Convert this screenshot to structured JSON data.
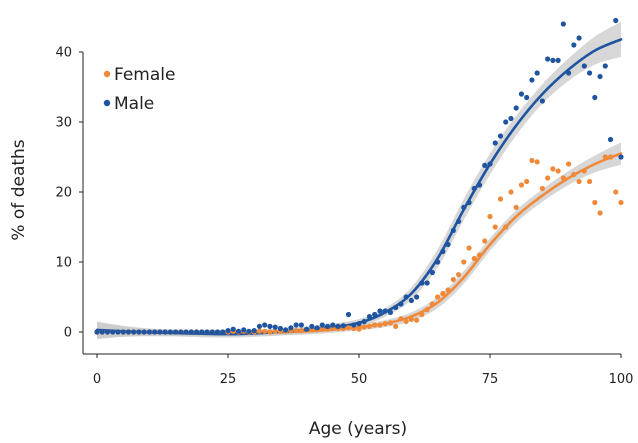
{
  "chart_data": {
    "type": "scatter",
    "title": "",
    "xlabel": "Age (years)",
    "ylabel": "% of deaths",
    "xlim": [
      0,
      100
    ],
    "ylim": [
      0,
      45
    ],
    "xticks": [
      0,
      25,
      50,
      75,
      100
    ],
    "yticks": [
      0,
      10,
      20,
      30,
      40
    ],
    "grid": false,
    "legend_position": "top-left",
    "band_color": "#c9c9c9",
    "series": [
      {
        "name": "Female",
        "color": "#f08a3a",
        "points": [
          [
            0,
            0
          ],
          [
            1,
            0
          ],
          [
            2,
            0
          ],
          [
            3,
            0
          ],
          [
            4,
            0
          ],
          [
            5,
            0
          ],
          [
            6,
            0
          ],
          [
            7,
            0
          ],
          [
            8,
            0
          ],
          [
            9,
            0
          ],
          [
            10,
            0
          ],
          [
            11,
            0
          ],
          [
            12,
            0
          ],
          [
            13,
            0
          ],
          [
            14,
            0
          ],
          [
            15,
            0
          ],
          [
            16,
            0
          ],
          [
            17,
            0
          ],
          [
            18,
            0
          ],
          [
            19,
            0
          ],
          [
            20,
            0
          ],
          [
            21,
            0
          ],
          [
            22,
            0
          ],
          [
            23,
            0
          ],
          [
            24,
            0
          ],
          [
            25,
            0
          ],
          [
            26,
            0.1
          ],
          [
            27,
            0
          ],
          [
            28,
            0.1
          ],
          [
            29,
            0
          ],
          [
            30,
            0
          ],
          [
            31,
            0.1
          ],
          [
            32,
            0.1
          ],
          [
            33,
            0
          ],
          [
            34,
            0.1
          ],
          [
            35,
            0.1
          ],
          [
            36,
            0.1
          ],
          [
            37,
            0.2
          ],
          [
            38,
            0.2
          ],
          [
            39,
            0.2
          ],
          [
            40,
            0.3
          ],
          [
            41,
            0.3
          ],
          [
            42,
            0.3
          ],
          [
            43,
            0.4
          ],
          [
            44,
            0.4
          ],
          [
            45,
            0.5
          ],
          [
            46,
            0.5
          ],
          [
            47,
            0.5
          ],
          [
            48,
            0.6
          ],
          [
            49,
            0.5
          ],
          [
            50,
            0.4
          ],
          [
            51,
            0.7
          ],
          [
            52,
            0.8
          ],
          [
            53,
            1.0
          ],
          [
            54,
            1.0
          ],
          [
            55,
            1.2
          ],
          [
            56,
            1.3
          ],
          [
            57,
            0.8
          ],
          [
            58,
            1.9
          ],
          [
            59,
            1.5
          ],
          [
            60,
            1.8
          ],
          [
            61,
            1.7
          ],
          [
            62,
            2.5
          ],
          [
            63,
            3.2
          ],
          [
            64,
            4.0
          ],
          [
            65,
            5.0
          ],
          [
            66,
            5.5
          ],
          [
            67,
            6.0
          ],
          [
            68,
            7.5
          ],
          [
            69,
            8.2
          ],
          [
            70,
            10.0
          ],
          [
            71,
            12.0
          ],
          [
            72,
            10.5
          ],
          [
            73,
            11.0
          ],
          [
            74,
            13.0
          ],
          [
            75,
            16.5
          ],
          [
            76,
            15.0
          ],
          [
            77,
            19.0
          ],
          [
            78,
            15.0
          ],
          [
            79,
            20.0
          ],
          [
            80,
            17.8
          ],
          [
            81,
            21.0
          ],
          [
            82,
            21.5
          ],
          [
            83,
            24.5
          ],
          [
            84,
            24.3
          ],
          [
            85,
            20.5
          ],
          [
            86,
            22.0
          ],
          [
            87,
            23.3
          ],
          [
            88,
            23.0
          ],
          [
            89,
            22.0
          ],
          [
            90,
            24.0
          ],
          [
            91,
            22.5
          ],
          [
            92,
            21.5
          ],
          [
            93,
            23.0
          ],
          [
            94,
            21.5
          ],
          [
            95,
            18.5
          ],
          [
            96,
            17.0
          ],
          [
            97,
            25.0
          ],
          [
            98,
            25.0
          ],
          [
            99,
            20.0
          ],
          [
            100,
            18.5
          ]
        ],
        "trend": [
          [
            0,
            0.15
          ],
          [
            5,
            0.05
          ],
          [
            10,
            -0.05
          ],
          [
            15,
            -0.1
          ],
          [
            20,
            -0.15
          ],
          [
            25,
            -0.12
          ],
          [
            30,
            -0.1
          ],
          [
            35,
            0.0
          ],
          [
            40,
            0.1
          ],
          [
            45,
            0.35
          ],
          [
            50,
            0.7
          ],
          [
            55,
            1.2
          ],
          [
            60,
            2.2
          ],
          [
            65,
            4.2
          ],
          [
            70,
            7.8
          ],
          [
            75,
            12.5
          ],
          [
            80,
            16.5
          ],
          [
            85,
            19.5
          ],
          [
            90,
            22.0
          ],
          [
            95,
            24.0
          ],
          [
            100,
            25.5
          ]
        ],
        "band": [
          [
            0,
            1.2
          ],
          [
            5,
            0.7
          ],
          [
            10,
            0.5
          ],
          [
            15,
            0.45
          ],
          [
            20,
            0.45
          ],
          [
            25,
            0.45
          ],
          [
            30,
            0.45
          ],
          [
            35,
            0.45
          ],
          [
            40,
            0.45
          ],
          [
            45,
            0.45
          ],
          [
            50,
            0.45
          ],
          [
            55,
            0.5
          ],
          [
            60,
            0.6
          ],
          [
            65,
            0.8
          ],
          [
            70,
            0.9
          ],
          [
            75,
            0.9
          ],
          [
            80,
            0.9
          ],
          [
            85,
            0.9
          ],
          [
            90,
            1.0
          ],
          [
            95,
            1.2
          ],
          [
            100,
            1.6
          ]
        ]
      },
      {
        "name": "Male",
        "color": "#1f55a0",
        "points": [
          [
            0,
            0
          ],
          [
            1,
            0
          ],
          [
            2,
            0
          ],
          [
            3,
            0
          ],
          [
            4,
            0
          ],
          [
            5,
            0
          ],
          [
            6,
            0
          ],
          [
            7,
            0
          ],
          [
            8,
            0
          ],
          [
            9,
            0
          ],
          [
            10,
            0
          ],
          [
            11,
            0
          ],
          [
            12,
            0
          ],
          [
            13,
            0
          ],
          [
            14,
            0
          ],
          [
            15,
            0
          ],
          [
            16,
            0
          ],
          [
            17,
            0
          ],
          [
            18,
            0
          ],
          [
            19,
            0
          ],
          [
            20,
            0
          ],
          [
            21,
            0
          ],
          [
            22,
            0
          ],
          [
            23,
            0
          ],
          [
            24,
            0
          ],
          [
            25,
            0.2
          ],
          [
            26,
            0.4
          ],
          [
            27,
            0.1
          ],
          [
            28,
            0.3
          ],
          [
            29,
            0.1
          ],
          [
            30,
            0.2
          ],
          [
            31,
            0.8
          ],
          [
            32,
            1.0
          ],
          [
            33,
            0.8
          ],
          [
            34,
            0.7
          ],
          [
            35,
            0.5
          ],
          [
            36,
            0.3
          ],
          [
            37,
            0.6
          ],
          [
            38,
            1.0
          ],
          [
            39,
            1.0
          ],
          [
            40,
            0.4
          ],
          [
            41,
            0.8
          ],
          [
            42,
            0.6
          ],
          [
            43,
            1.0
          ],
          [
            44,
            0.8
          ],
          [
            45,
            1.0
          ],
          [
            46,
            0.8
          ],
          [
            47,
            0.9
          ],
          [
            48,
            2.5
          ],
          [
            49,
            1.0
          ],
          [
            50,
            1.2
          ],
          [
            51,
            1.5
          ],
          [
            52,
            2.2
          ],
          [
            53,
            2.5
          ],
          [
            54,
            3.0
          ],
          [
            55,
            3.0
          ],
          [
            56,
            2.8
          ],
          [
            57,
            3.5
          ],
          [
            58,
            4.0
          ],
          [
            59,
            5.0
          ],
          [
            60,
            4.5
          ],
          [
            61,
            5.0
          ],
          [
            62,
            7.0
          ],
          [
            63,
            7.0
          ],
          [
            64,
            8.5
          ],
          [
            65,
            10.0
          ],
          [
            66,
            11.5
          ],
          [
            67,
            12.5
          ],
          [
            68,
            14.5
          ],
          [
            69,
            15.8
          ],
          [
            70,
            17.8
          ],
          [
            71,
            18.5
          ],
          [
            72,
            20.5
          ],
          [
            73,
            21.0
          ],
          [
            74,
            23.8
          ],
          [
            75,
            24.0
          ],
          [
            76,
            27.0
          ],
          [
            77,
            28.0
          ],
          [
            78,
            30.0
          ],
          [
            79,
            30.5
          ],
          [
            80,
            32.0
          ],
          [
            81,
            34.0
          ],
          [
            82,
            33.5
          ],
          [
            83,
            36.0
          ],
          [
            84,
            37.0
          ],
          [
            85,
            33.0
          ],
          [
            86,
            39.0
          ],
          [
            87,
            38.8
          ],
          [
            88,
            38.8
          ],
          [
            89,
            44.0
          ],
          [
            90,
            37.0
          ],
          [
            91,
            41.0
          ],
          [
            92,
            42.0
          ],
          [
            93,
            38.0
          ],
          [
            94,
            37.0
          ],
          [
            95,
            33.5
          ],
          [
            96,
            36.5
          ],
          [
            97,
            38.0
          ],
          [
            98,
            27.5
          ],
          [
            99,
            44.5
          ],
          [
            100,
            25.0
          ]
        ],
        "trend": [
          [
            0,
            0.3
          ],
          [
            5,
            0.1
          ],
          [
            10,
            -0.05
          ],
          [
            15,
            -0.15
          ],
          [
            20,
            -0.25
          ],
          [
            25,
            -0.3
          ],
          [
            30,
            -0.2
          ],
          [
            35,
            0.0
          ],
          [
            40,
            0.3
          ],
          [
            45,
            0.7
          ],
          [
            50,
            1.3
          ],
          [
            55,
            2.8
          ],
          [
            60,
            5.5
          ],
          [
            65,
            10.5
          ],
          [
            70,
            17.5
          ],
          [
            75,
            24.0
          ],
          [
            80,
            29.5
          ],
          [
            85,
            34.0
          ],
          [
            90,
            37.5
          ],
          [
            95,
            40.2
          ],
          [
            100,
            41.8
          ]
        ],
        "band": [
          [
            0,
            1.2
          ],
          [
            5,
            0.8
          ],
          [
            10,
            0.55
          ],
          [
            15,
            0.5
          ],
          [
            20,
            0.5
          ],
          [
            25,
            0.5
          ],
          [
            30,
            0.5
          ],
          [
            35,
            0.5
          ],
          [
            40,
            0.5
          ],
          [
            45,
            0.5
          ],
          [
            50,
            0.55
          ],
          [
            55,
            0.6
          ],
          [
            60,
            0.9
          ],
          [
            65,
            1.3
          ],
          [
            70,
            1.5
          ],
          [
            75,
            1.5
          ],
          [
            80,
            1.4
          ],
          [
            85,
            1.4
          ],
          [
            90,
            1.6
          ],
          [
            95,
            2.0
          ],
          [
            100,
            2.5
          ]
        ]
      }
    ]
  }
}
